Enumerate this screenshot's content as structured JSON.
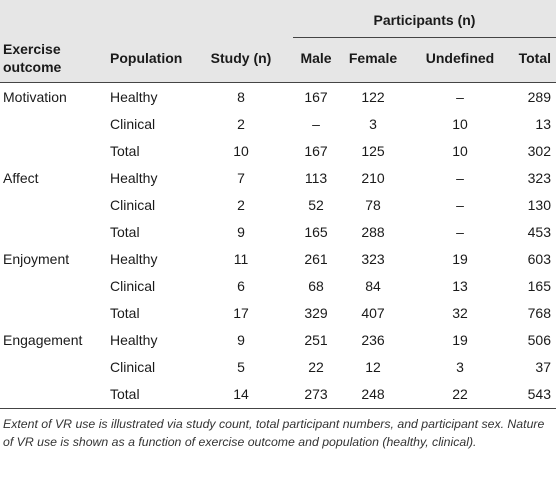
{
  "table": {
    "group_header": "Participants (n)",
    "headers": [
      "Exercise outcome",
      "Population",
      "Study (n)",
      "Male",
      "Female",
      "Undefined",
      "Total"
    ],
    "groups": [
      {
        "outcome": "Motivation",
        "rows": [
          [
            "Healthy",
            "8",
            "167",
            "122",
            "–",
            "289"
          ],
          [
            "Clinical",
            "2",
            "–",
            "3",
            "10",
            "13"
          ],
          [
            "Total",
            "10",
            "167",
            "125",
            "10",
            "302"
          ]
        ]
      },
      {
        "outcome": "Affect",
        "rows": [
          [
            "Healthy",
            "7",
            "113",
            "210",
            "–",
            "323"
          ],
          [
            "Clinical",
            "2",
            "52",
            "78",
            "–",
            "130"
          ],
          [
            "Total",
            "9",
            "165",
            "288",
            "–",
            "453"
          ]
        ]
      },
      {
        "outcome": "Enjoyment",
        "rows": [
          [
            "Healthy",
            "11",
            "261",
            "323",
            "19",
            "603"
          ],
          [
            "Clinical",
            "6",
            "68",
            "84",
            "13",
            "165"
          ],
          [
            "Total",
            "17",
            "329",
            "407",
            "32",
            "768"
          ]
        ]
      },
      {
        "outcome": "Engagement",
        "rows": [
          [
            "Healthy",
            "9",
            "251",
            "236",
            "19",
            "506"
          ],
          [
            "Clinical",
            "5",
            "22",
            "12",
            "3",
            "37"
          ],
          [
            "Total",
            "14",
            "273",
            "248",
            "22",
            "543"
          ]
        ]
      }
    ],
    "caption": "Extent of VR use is illustrated via study count, total participant numbers, and participant sex. Nature of VR use is shown as a function of exercise outcome and population (healthy, clinical)."
  }
}
